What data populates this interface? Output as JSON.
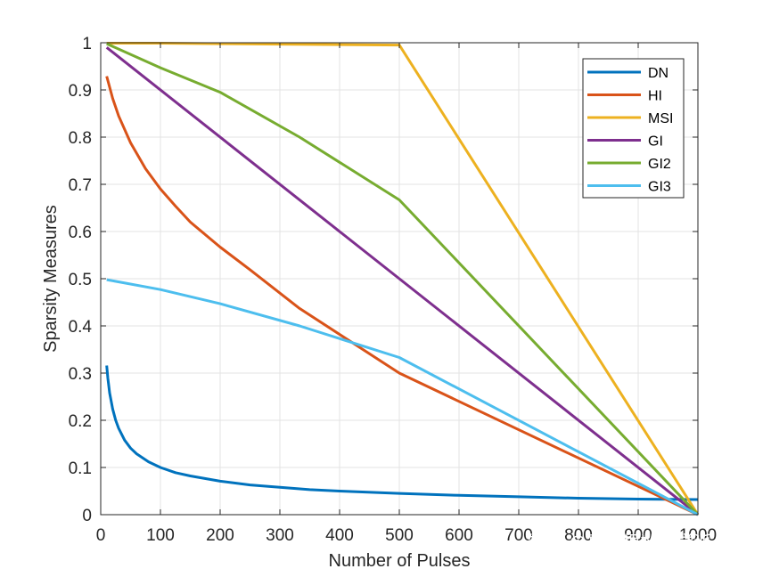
{
  "chart_data": {
    "type": "line",
    "title": "",
    "xlabel": "Number of Pulses",
    "ylabel": "Sparsity Measures",
    "xlim": [
      0,
      1000
    ],
    "ylim": [
      0,
      1
    ],
    "xticks": [
      0,
      100,
      200,
      300,
      400,
      500,
      600,
      700,
      800,
      900,
      1000
    ],
    "xtick_labels": [
      "0",
      "100",
      "200",
      "300",
      "400",
      "500",
      "600",
      "700",
      "800",
      "900",
      "1000"
    ],
    "yticks": [
      0,
      0.1,
      0.2,
      0.3,
      0.4,
      0.5,
      0.6,
      0.7,
      0.8,
      0.9,
      1
    ],
    "ytick_labels": [
      "0",
      "0.1",
      "0.2",
      "0.3",
      "0.4",
      "0.5",
      "0.6",
      "0.7",
      "0.8",
      "0.9",
      "1"
    ],
    "grid": true,
    "legend_position": "top-right",
    "series": [
      {
        "name": "DN",
        "color": "#0072BD",
        "x": [
          10,
          12,
          15,
          20,
          25,
          30,
          40,
          50,
          60,
          80,
          100,
          125,
          150,
          200,
          250,
          300,
          350,
          400,
          500,
          600,
          700,
          800,
          900,
          1000
        ],
        "y": [
          0.316,
          0.289,
          0.258,
          0.224,
          0.2,
          0.183,
          0.158,
          0.141,
          0.129,
          0.112,
          0.1,
          0.089,
          0.082,
          0.071,
          0.063,
          0.058,
          0.053,
          0.05,
          0.045,
          0.041,
          0.038,
          0.035,
          0.033,
          0.032
        ]
      },
      {
        "name": "HI",
        "color": "#D95319",
        "x": [
          10,
          20,
          30,
          50,
          75,
          100,
          125,
          150,
          200,
          250,
          333,
          500,
          1000
        ],
        "y": [
          0.929,
          0.882,
          0.845,
          0.788,
          0.733,
          0.69,
          0.654,
          0.62,
          0.567,
          0.519,
          0.437,
          0.3,
          0.0
        ]
      },
      {
        "name": "MSI",
        "color": "#EDB120",
        "x": [
          10,
          100,
          200,
          300,
          400,
          500,
          1000
        ],
        "y": [
          0.999,
          0.999,
          0.998,
          0.997,
          0.996,
          0.995,
          0.0
        ]
      },
      {
        "name": "GI",
        "color": "#7E2F8E",
        "x": [
          10,
          1000
        ],
        "y": [
          0.99,
          0.0
        ]
      },
      {
        "name": "GI2",
        "color": "#77AC30",
        "x": [
          10,
          100,
          200,
          333,
          500,
          1000
        ],
        "y": [
          0.998,
          0.947,
          0.895,
          0.8,
          0.667,
          0.0
        ]
      },
      {
        "name": "GI3",
        "color": "#4DBEEE",
        "x": [
          10,
          100,
          200,
          333,
          500,
          1000
        ],
        "y": [
          0.498,
          0.477,
          0.447,
          0.4,
          0.333,
          0.0
        ]
      }
    ]
  },
  "watermark": "知乎 @哥廷根数学学派"
}
